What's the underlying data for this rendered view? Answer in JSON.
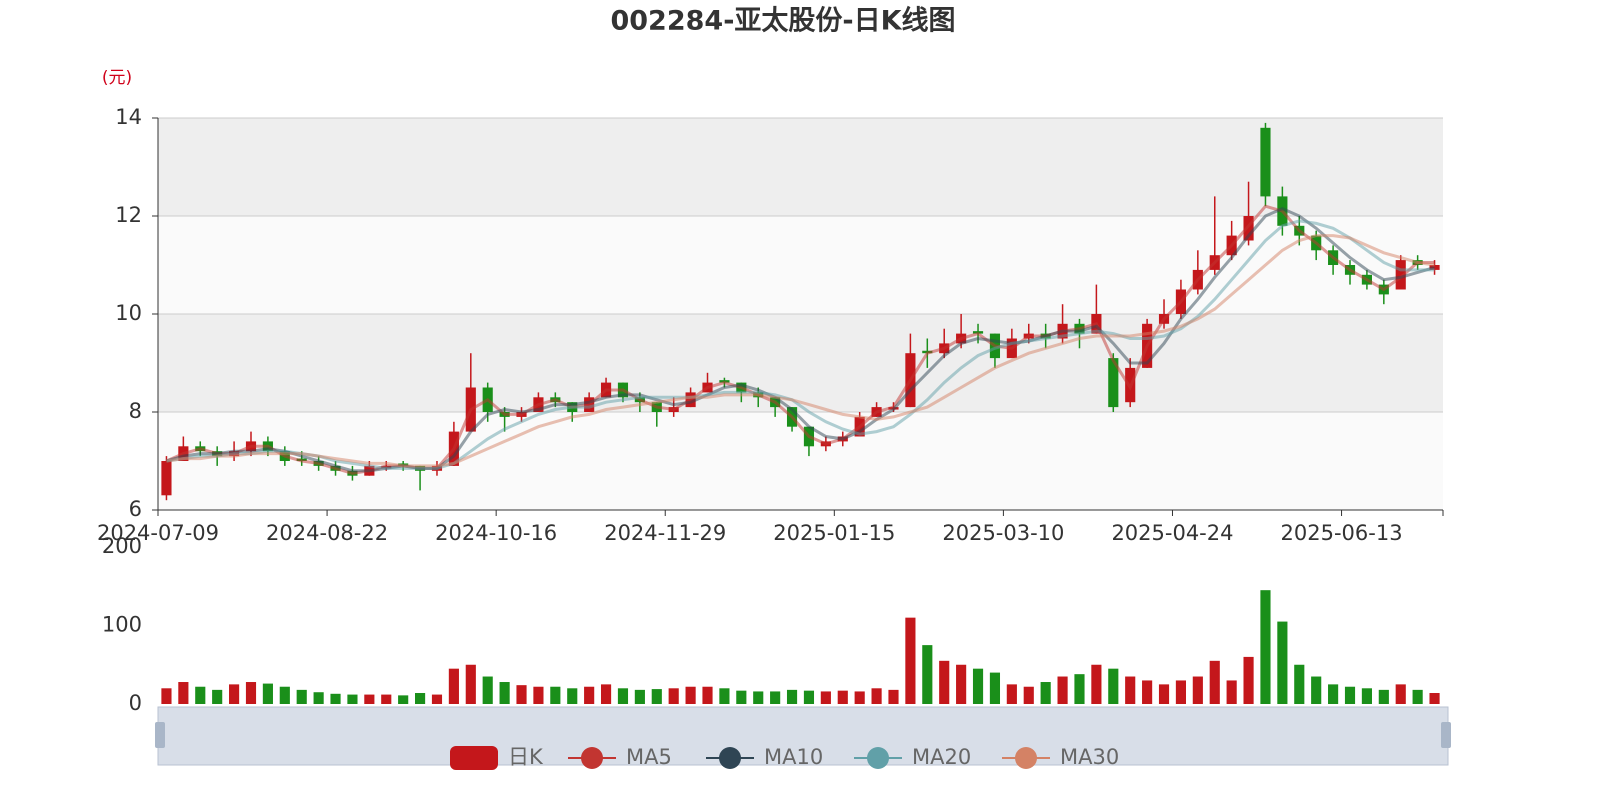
{
  "chart_data": [
    {
      "type": "candlestick",
      "title": "002284-亚太股份-日K线图",
      "y_unit": "(元)",
      "categories": [
        "2024-07-09",
        null,
        null,
        null,
        null,
        null,
        null,
        null,
        null,
        null,
        "2024-08-22",
        null,
        null,
        null,
        null,
        null,
        null,
        null,
        null,
        null,
        "2024-10-16",
        null,
        null,
        null,
        null,
        null,
        null,
        null,
        null,
        null,
        "2024-11-29",
        null,
        null,
        null,
        null,
        null,
        null,
        null,
        null,
        null,
        "2025-01-15",
        null,
        null,
        null,
        null,
        null,
        null,
        null,
        null,
        null,
        "2025-03-10",
        null,
        null,
        null,
        null,
        null,
        null,
        null,
        null,
        null,
        "2025-04-24",
        null,
        null,
        null,
        null,
        null,
        null,
        null,
        null,
        null,
        "2025-06-13",
        null,
        null,
        null,
        null,
        null
      ],
      "candle_name": "日K",
      "up_color": "#c4171b",
      "down_color": "#1a8f1a",
      "candles": [
        [
          6.3,
          7.0,
          6.2,
          7.1
        ],
        [
          7.0,
          7.3,
          7.0,
          7.5
        ],
        [
          7.3,
          7.2,
          7.1,
          7.4
        ],
        [
          7.2,
          7.1,
          6.9,
          7.3
        ],
        [
          7.1,
          7.2,
          7.0,
          7.4
        ],
        [
          7.2,
          7.4,
          7.1,
          7.6
        ],
        [
          7.4,
          7.2,
          7.1,
          7.5
        ],
        [
          7.2,
          7.0,
          6.9,
          7.3
        ],
        [
          7.05,
          7.0,
          6.9,
          7.2
        ],
        [
          7.0,
          6.9,
          6.8,
          7.1
        ],
        [
          6.9,
          6.8,
          6.7,
          7.0
        ],
        [
          6.8,
          6.7,
          6.6,
          6.9
        ],
        [
          6.7,
          6.9,
          6.7,
          7.0
        ],
        [
          6.85,
          6.9,
          6.8,
          7.0
        ],
        [
          6.95,
          6.9,
          6.8,
          7.0
        ],
        [
          6.9,
          6.8,
          6.4,
          6.9
        ],
        [
          6.8,
          6.9,
          6.7,
          7.0
        ],
        [
          6.9,
          7.6,
          6.9,
          7.8
        ],
        [
          7.6,
          8.5,
          7.6,
          9.2
        ],
        [
          8.5,
          8.0,
          7.8,
          8.6
        ],
        [
          8.0,
          7.9,
          7.6,
          8.1
        ],
        [
          7.9,
          8.0,
          7.8,
          8.1
        ],
        [
          8.0,
          8.3,
          8.0,
          8.4
        ],
        [
          8.3,
          8.2,
          8.1,
          8.4
        ],
        [
          8.2,
          8.0,
          7.8,
          8.2
        ],
        [
          8.0,
          8.3,
          8.0,
          8.4
        ],
        [
          8.3,
          8.6,
          8.3,
          8.7
        ],
        [
          8.6,
          8.3,
          8.2,
          8.6
        ],
        [
          8.3,
          8.2,
          8.0,
          8.4
        ],
        [
          8.2,
          8.0,
          7.7,
          8.2
        ],
        [
          8.0,
          8.1,
          7.9,
          8.3
        ],
        [
          8.1,
          8.4,
          8.1,
          8.5
        ],
        [
          8.4,
          8.6,
          8.4,
          8.8
        ],
        [
          8.65,
          8.6,
          8.5,
          8.7
        ],
        [
          8.6,
          8.4,
          8.2,
          8.6
        ],
        [
          8.4,
          8.3,
          8.1,
          8.5
        ],
        [
          8.3,
          8.1,
          7.9,
          8.3
        ],
        [
          8.1,
          7.7,
          7.6,
          8.1
        ],
        [
          7.7,
          7.3,
          7.1,
          7.7
        ],
        [
          7.3,
          7.4,
          7.2,
          7.5
        ],
        [
          7.4,
          7.5,
          7.3,
          7.6
        ],
        [
          7.5,
          7.9,
          7.5,
          8.0
        ],
        [
          7.9,
          8.1,
          7.9,
          8.2
        ],
        [
          8.05,
          8.1,
          8.0,
          8.2
        ],
        [
          8.1,
          9.2,
          8.1,
          9.6
        ],
        [
          9.25,
          9.2,
          8.9,
          9.5
        ],
        [
          9.2,
          9.4,
          9.1,
          9.7
        ],
        [
          9.4,
          9.6,
          9.3,
          10.0
        ],
        [
          9.65,
          9.6,
          9.4,
          9.8
        ],
        [
          9.6,
          9.1,
          8.9,
          9.6
        ],
        [
          9.1,
          9.5,
          9.1,
          9.7
        ],
        [
          9.5,
          9.6,
          9.4,
          9.8
        ],
        [
          9.6,
          9.5,
          9.3,
          9.8
        ],
        [
          9.5,
          9.8,
          9.4,
          10.2
        ],
        [
          9.8,
          9.6,
          9.3,
          9.9
        ],
        [
          9.6,
          10.0,
          9.6,
          10.6
        ],
        [
          9.1,
          8.1,
          8.0,
          9.2
        ],
        [
          8.2,
          8.9,
          8.1,
          9.1
        ],
        [
          8.9,
          9.8,
          8.9,
          9.9
        ],
        [
          9.8,
          10.0,
          9.7,
          10.3
        ],
        [
          10.0,
          10.5,
          9.9,
          10.7
        ],
        [
          10.5,
          10.9,
          10.4,
          11.3
        ],
        [
          10.9,
          11.2,
          10.8,
          12.4
        ],
        [
          11.2,
          11.6,
          11.1,
          11.9
        ],
        [
          11.5,
          12.0,
          11.4,
          12.7
        ],
        [
          13.8,
          12.4,
          12.2,
          13.9
        ],
        [
          12.4,
          11.8,
          11.6,
          12.6
        ],
        [
          11.8,
          11.6,
          11.4,
          12.0
        ],
        [
          11.6,
          11.3,
          11.1,
          11.7
        ],
        [
          11.3,
          11.0,
          10.8,
          11.4
        ],
        [
          11.0,
          10.8,
          10.6,
          11.1
        ],
        [
          10.8,
          10.6,
          10.5,
          10.9
        ],
        [
          10.6,
          10.4,
          10.2,
          10.7
        ],
        [
          10.5,
          11.1,
          10.5,
          11.2
        ],
        [
          11.1,
          11.0,
          10.9,
          11.2
        ],
        [
          10.9,
          11.0,
          10.8,
          11.1
        ]
      ],
      "series": [
        {
          "name": "MA5",
          "color": "#c23531",
          "values": [
            7.0,
            7.15,
            7.25,
            7.15,
            7.15,
            7.3,
            7.3,
            7.1,
            7.0,
            6.95,
            6.85,
            6.75,
            6.8,
            6.9,
            6.9,
            6.85,
            6.85,
            7.25,
            8.05,
            8.25,
            7.95,
            7.95,
            8.15,
            8.25,
            8.1,
            8.15,
            8.45,
            8.45,
            8.25,
            8.1,
            8.05,
            8.25,
            8.5,
            8.6,
            8.5,
            8.35,
            8.2,
            7.9,
            7.5,
            7.35,
            7.45,
            7.7,
            8.0,
            8.1,
            8.65,
            9.2,
            9.3,
            9.5,
            9.6,
            9.35,
            9.3,
            9.55,
            9.55,
            9.65,
            9.7,
            9.8,
            9.05,
            8.5,
            9.35,
            9.9,
            10.25,
            10.7,
            11.05,
            11.4,
            11.8,
            12.2,
            12.1,
            11.7,
            11.45,
            11.15,
            10.9,
            10.7,
            10.5,
            10.75,
            11.05,
            11.05
          ]
        },
        {
          "name": "MA10",
          "color": "#2f4554",
          "values": [
            7.0,
            7.1,
            7.15,
            7.15,
            7.2,
            7.2,
            7.25,
            7.2,
            7.1,
            7.0,
            6.9,
            6.8,
            6.8,
            6.85,
            6.9,
            6.85,
            6.85,
            7.1,
            7.6,
            7.95,
            8.05,
            8.0,
            8.05,
            8.15,
            8.15,
            8.2,
            8.3,
            8.35,
            8.35,
            8.25,
            8.15,
            8.2,
            8.35,
            8.5,
            8.55,
            8.45,
            8.3,
            8.05,
            7.7,
            7.5,
            7.45,
            7.6,
            7.85,
            8.05,
            8.45,
            8.8,
            9.15,
            9.4,
            9.5,
            9.45,
            9.4,
            9.45,
            9.55,
            9.65,
            9.65,
            9.75,
            9.4,
            9.0,
            9.0,
            9.4,
            9.9,
            10.3,
            10.75,
            11.15,
            11.6,
            12.0,
            12.15,
            12.0,
            11.75,
            11.45,
            11.15,
            10.9,
            10.7,
            10.75,
            10.85,
            10.95
          ]
        },
        {
          "name": "MA20",
          "color": "#61a0a8",
          "values": [
            7.0,
            7.05,
            7.1,
            7.1,
            7.15,
            7.15,
            7.2,
            7.2,
            7.15,
            7.1,
            7.0,
            6.95,
            6.9,
            6.85,
            6.85,
            6.85,
            6.85,
            6.95,
            7.2,
            7.45,
            7.65,
            7.8,
            7.95,
            8.05,
            8.1,
            8.1,
            8.2,
            8.25,
            8.3,
            8.3,
            8.3,
            8.3,
            8.35,
            8.4,
            8.4,
            8.4,
            8.35,
            8.25,
            8.0,
            7.8,
            7.65,
            7.55,
            7.6,
            7.7,
            7.95,
            8.25,
            8.6,
            8.9,
            9.15,
            9.3,
            9.4,
            9.45,
            9.5,
            9.55,
            9.6,
            9.65,
            9.6,
            9.5,
            9.5,
            9.55,
            9.7,
            9.95,
            10.3,
            10.7,
            11.1,
            11.5,
            11.8,
            11.9,
            11.85,
            11.75,
            11.55,
            11.3,
            11.05,
            10.9,
            10.9,
            10.9
          ]
        },
        {
          "name": "MA30",
          "color": "#d48265",
          "values": [
            7.0,
            7.05,
            7.05,
            7.1,
            7.1,
            7.15,
            7.15,
            7.15,
            7.15,
            7.1,
            7.05,
            7.0,
            6.95,
            6.95,
            6.9,
            6.9,
            6.9,
            6.95,
            7.1,
            7.25,
            7.4,
            7.55,
            7.7,
            7.8,
            7.9,
            7.95,
            8.05,
            8.1,
            8.15,
            8.2,
            8.25,
            8.3,
            8.3,
            8.35,
            8.35,
            8.35,
            8.3,
            8.25,
            8.15,
            8.05,
            7.95,
            7.9,
            7.85,
            7.9,
            8.0,
            8.1,
            8.3,
            8.5,
            8.7,
            8.9,
            9.05,
            9.2,
            9.3,
            9.4,
            9.5,
            9.55,
            9.55,
            9.55,
            9.6,
            9.65,
            9.75,
            9.9,
            10.1,
            10.4,
            10.7,
            11.0,
            11.3,
            11.5,
            11.6,
            11.6,
            11.55,
            11.4,
            11.25,
            11.15,
            11.05,
            11.0
          ]
        }
      ],
      "ylim": [
        6,
        14
      ],
      "yticks": [
        6,
        8,
        10,
        12,
        14
      ],
      "grid": true,
      "legend": "bottom"
    },
    {
      "type": "bar",
      "values": [
        20,
        28,
        22,
        18,
        25,
        28,
        26,
        22,
        18,
        15,
        13,
        12,
        12,
        12,
        11,
        14,
        12,
        45,
        50,
        35,
        28,
        24,
        22,
        22,
        20,
        22,
        25,
        20,
        18,
        19,
        20,
        22,
        22,
        20,
        17,
        16,
        16,
        18,
        17,
        16,
        17,
        16,
        20,
        18,
        110,
        75,
        55,
        50,
        45,
        40,
        25,
        22,
        28,
        35,
        38,
        50,
        45,
        35,
        30,
        25,
        30,
        35,
        55,
        30,
        60,
        145,
        105,
        50,
        35,
        25,
        22,
        20,
        18,
        25,
        18,
        14
      ],
      "ylim": [
        0,
        200
      ],
      "yticks": [
        0,
        100,
        200
      ]
    }
  ]
}
